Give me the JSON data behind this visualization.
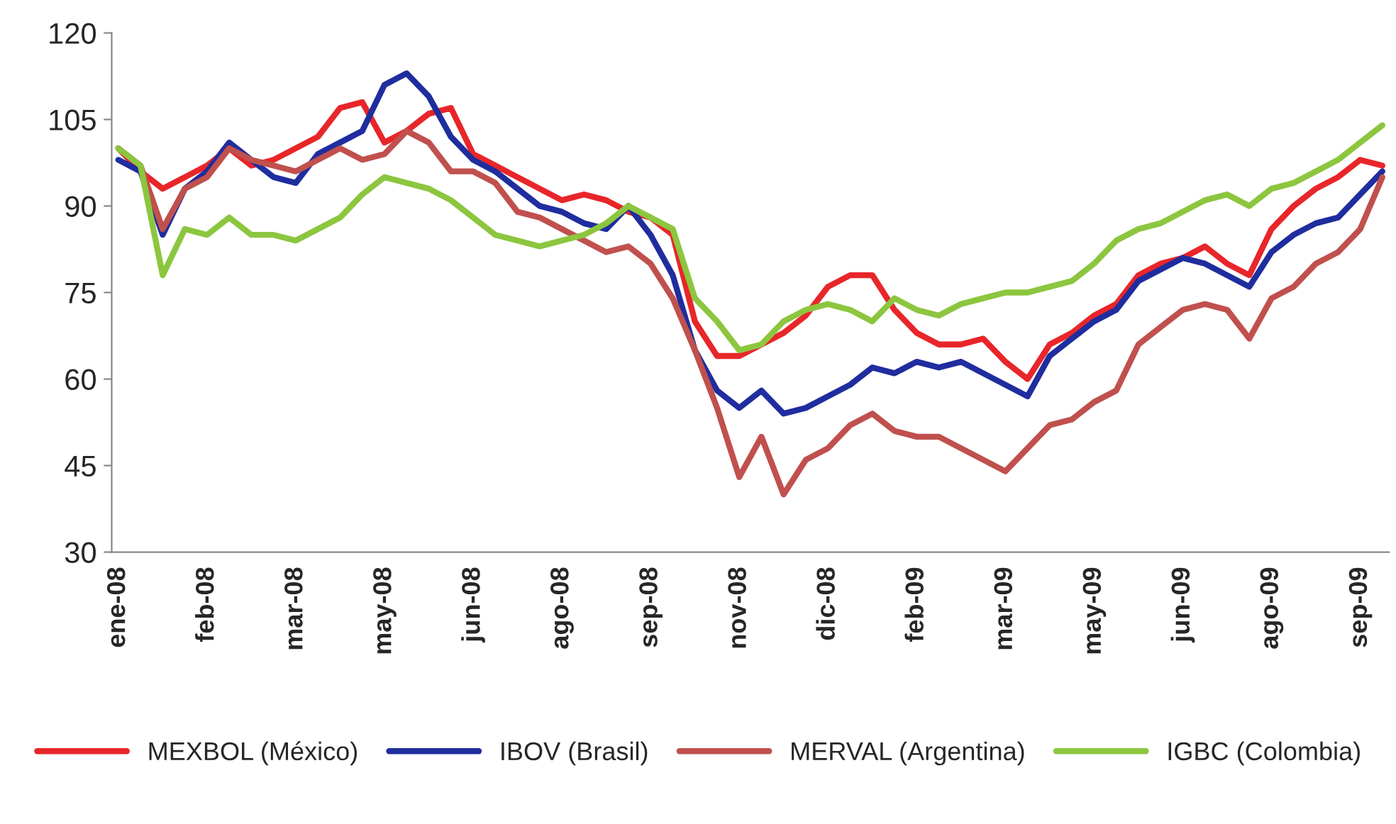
{
  "chart_data": {
    "type": "line",
    "categories": [
      "ene-08",
      null,
      null,
      null,
      "feb-08",
      null,
      null,
      null,
      "mar-08",
      null,
      null,
      null,
      "may-08",
      null,
      null,
      null,
      "jun-08",
      null,
      null,
      null,
      "ago-08",
      null,
      null,
      null,
      "sep-08",
      null,
      null,
      null,
      "nov-08",
      null,
      null,
      null,
      "dic-08",
      null,
      null,
      null,
      "feb-09",
      null,
      null,
      null,
      "mar-09",
      null,
      null,
      null,
      "may-09",
      null,
      null,
      null,
      "jun-09",
      null,
      null,
      null,
      "ago-09",
      null,
      null,
      null,
      "sep-09",
      null
    ],
    "series": [
      {
        "name": "MEXBOL (México)",
        "color": "#e8262a",
        "values": [
          100,
          96,
          93,
          95,
          97,
          100,
          97,
          98,
          100,
          102,
          107,
          108,
          101,
          103,
          106,
          107,
          99,
          97,
          95,
          93,
          91,
          92,
          91,
          89,
          88,
          85,
          70,
          64,
          64,
          66,
          68,
          71,
          76,
          78,
          78,
          72,
          68,
          66,
          66,
          67,
          63,
          60,
          66,
          68,
          71,
          73,
          78,
          80,
          81,
          83,
          80,
          78,
          86,
          90,
          93,
          95,
          98,
          97
        ]
      },
      {
        "name": "IBOV (Brasil)",
        "color": "#1f2d9e",
        "values": [
          98,
          96,
          85,
          93,
          96,
          101,
          98,
          95,
          94,
          99,
          101,
          103,
          111,
          113,
          109,
          102,
          98,
          96,
          93,
          90,
          89,
          87,
          86,
          90,
          85,
          78,
          65,
          58,
          55,
          58,
          54,
          55,
          57,
          59,
          62,
          61,
          63,
          62,
          63,
          61,
          59,
          57,
          64,
          67,
          70,
          72,
          77,
          79,
          81,
          80,
          78,
          76,
          82,
          85,
          87,
          88,
          92,
          96
        ]
      },
      {
        "name": "MERVAL (Argentina)",
        "color": "#c0504d",
        "values": [
          100,
          97,
          86,
          93,
          95,
          100,
          98,
          97,
          96,
          98,
          100,
          98,
          99,
          103,
          101,
          96,
          96,
          94,
          89,
          88,
          86,
          84,
          82,
          83,
          80,
          74,
          65,
          55,
          43,
          50,
          40,
          46,
          48,
          52,
          54,
          51,
          50,
          50,
          48,
          46,
          44,
          48,
          52,
          53,
          56,
          58,
          66,
          69,
          72,
          73,
          72,
          67,
          74,
          76,
          80,
          82,
          86,
          95
        ]
      },
      {
        "name": "IGBC (Colombia)",
        "color": "#8cc63f",
        "values": [
          100,
          97,
          78,
          86,
          85,
          88,
          85,
          85,
          84,
          86,
          88,
          92,
          95,
          94,
          93,
          91,
          88,
          85,
          84,
          83,
          84,
          85,
          87,
          90,
          88,
          86,
          74,
          70,
          65,
          66,
          70,
          72,
          73,
          72,
          70,
          74,
          72,
          71,
          73,
          74,
          75,
          75,
          76,
          77,
          80,
          84,
          86,
          87,
          89,
          91,
          92,
          90,
          93,
          94,
          96,
          98,
          101,
          104
        ]
      }
    ],
    "ylim": [
      30,
      120
    ],
    "yticks": [
      30,
      45,
      60,
      75,
      90,
      105,
      120
    ],
    "grid": false,
    "legend": "bottom",
    "line_style": "solid",
    "marker": "none"
  }
}
